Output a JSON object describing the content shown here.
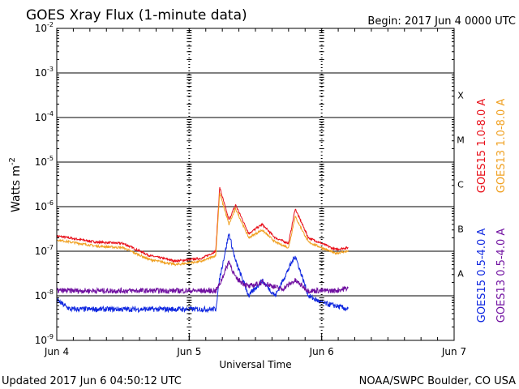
{
  "chart_data": {
    "type": "line",
    "title": "GOES Xray Flux (1-minute data)",
    "begin_label": "Begin:  2017 Jun 4 0000 UTC",
    "xlabel": "Universal Time",
    "ylabel": "Watts m",
    "ylabel_exponent": "-2",
    "x_ticks": [
      "Jun 4",
      "Jun 5",
      "Jun 6",
      "Jun 7"
    ],
    "xlim_days": [
      0,
      3
    ],
    "y_scale": "log",
    "ylim": [
      1e-09,
      0.01
    ],
    "y_ticks": [
      {
        "base": "10",
        "exp": "-2"
      },
      {
        "base": "10",
        "exp": "-3"
      },
      {
        "base": "10",
        "exp": "-4"
      },
      {
        "base": "10",
        "exp": "-5"
      },
      {
        "base": "10",
        "exp": "-6"
      },
      {
        "base": "10",
        "exp": "-7"
      },
      {
        "base": "10",
        "exp": "-8"
      },
      {
        "base": "10",
        "exp": "-9"
      }
    ],
    "flare_classes": [
      "X",
      "M",
      "C",
      "B",
      "A"
    ],
    "series": [
      {
        "name": "GOES15 1.0-8.0 A",
        "color": "#e8101a",
        "points": [
          [
            0,
            2.2e-07
          ],
          [
            0.3,
            1.6e-07
          ],
          [
            0.5,
            1.5e-07
          ],
          [
            0.7,
            8e-08
          ],
          [
            0.9,
            6e-08
          ],
          [
            1.1,
            7e-08
          ],
          [
            1.2,
            1e-07
          ],
          [
            1.23,
            2.7e-06
          ],
          [
            1.3,
            5e-07
          ],
          [
            1.35,
            1.1e-06
          ],
          [
            1.45,
            2.5e-07
          ],
          [
            1.55,
            4e-07
          ],
          [
            1.65,
            2e-07
          ],
          [
            1.75,
            1.5e-07
          ],
          [
            1.8,
            9e-07
          ],
          [
            1.9,
            2e-07
          ],
          [
            2.0,
            1.5e-07
          ],
          [
            2.1,
            1.1e-07
          ],
          [
            2.2,
            1.2e-07
          ]
        ]
      },
      {
        "name": "GOES13 1.0-8.0 A",
        "color": "#f0a020",
        "points": [
          [
            0,
            1.8e-07
          ],
          [
            0.3,
            1.3e-07
          ],
          [
            0.5,
            1.2e-07
          ],
          [
            0.7,
            6.5e-08
          ],
          [
            0.9,
            5e-08
          ],
          [
            1.1,
            6e-08
          ],
          [
            1.2,
            8e-08
          ],
          [
            1.23,
            2e-06
          ],
          [
            1.3,
            4e-07
          ],
          [
            1.35,
            9e-07
          ],
          [
            1.45,
            2e-07
          ],
          [
            1.55,
            3e-07
          ],
          [
            1.65,
            1.6e-07
          ],
          [
            1.75,
            1.2e-07
          ],
          [
            1.8,
            6e-07
          ],
          [
            1.9,
            1.6e-07
          ],
          [
            2.0,
            1.2e-07
          ],
          [
            2.1,
            9e-08
          ],
          [
            2.2,
            1e-07
          ]
        ]
      },
      {
        "name": "GOES15 0.5-4.0 A",
        "color": "#1028e0",
        "points": [
          [
            0,
            8e-09
          ],
          [
            0.1,
            5e-09
          ],
          [
            0.3,
            5e-09
          ],
          [
            0.5,
            5e-09
          ],
          [
            0.7,
            5e-09
          ],
          [
            0.9,
            5e-09
          ],
          [
            1.1,
            5e-09
          ],
          [
            1.2,
            5e-09
          ],
          [
            1.23,
            2.5e-08
          ],
          [
            1.3,
            2.5e-07
          ],
          [
            1.35,
            6e-08
          ],
          [
            1.45,
            1e-08
          ],
          [
            1.55,
            2.2e-08
          ],
          [
            1.65,
            1e-08
          ],
          [
            1.8,
            8e-08
          ],
          [
            1.9,
            1e-08
          ],
          [
            2.0,
            7e-09
          ],
          [
            2.1,
            6e-09
          ],
          [
            2.2,
            5e-09
          ]
        ]
      },
      {
        "name": "GOES13 0.5-4.0 A",
        "color": "#7010a0",
        "points": [
          [
            0,
            1.3e-08
          ],
          [
            0.3,
            1.3e-08
          ],
          [
            0.6,
            1.3e-08
          ],
          [
            0.9,
            1.3e-08
          ],
          [
            1.2,
            1.3e-08
          ],
          [
            1.23,
            1.8e-08
          ],
          [
            1.3,
            6e-08
          ],
          [
            1.35,
            2.5e-08
          ],
          [
            1.45,
            1.6e-08
          ],
          [
            1.55,
            2e-08
          ],
          [
            1.7,
            1.4e-08
          ],
          [
            1.8,
            2.2e-08
          ],
          [
            1.9,
            1.3e-08
          ],
          [
            2.0,
            1.3e-08
          ],
          [
            2.1,
            1.3e-08
          ],
          [
            2.2,
            1.5e-08
          ]
        ]
      }
    ]
  },
  "footer": {
    "updated": "Updated 2017 Jun  6 04:50:12 UTC",
    "credit": "NOAA/SWPC Boulder, CO USA"
  }
}
